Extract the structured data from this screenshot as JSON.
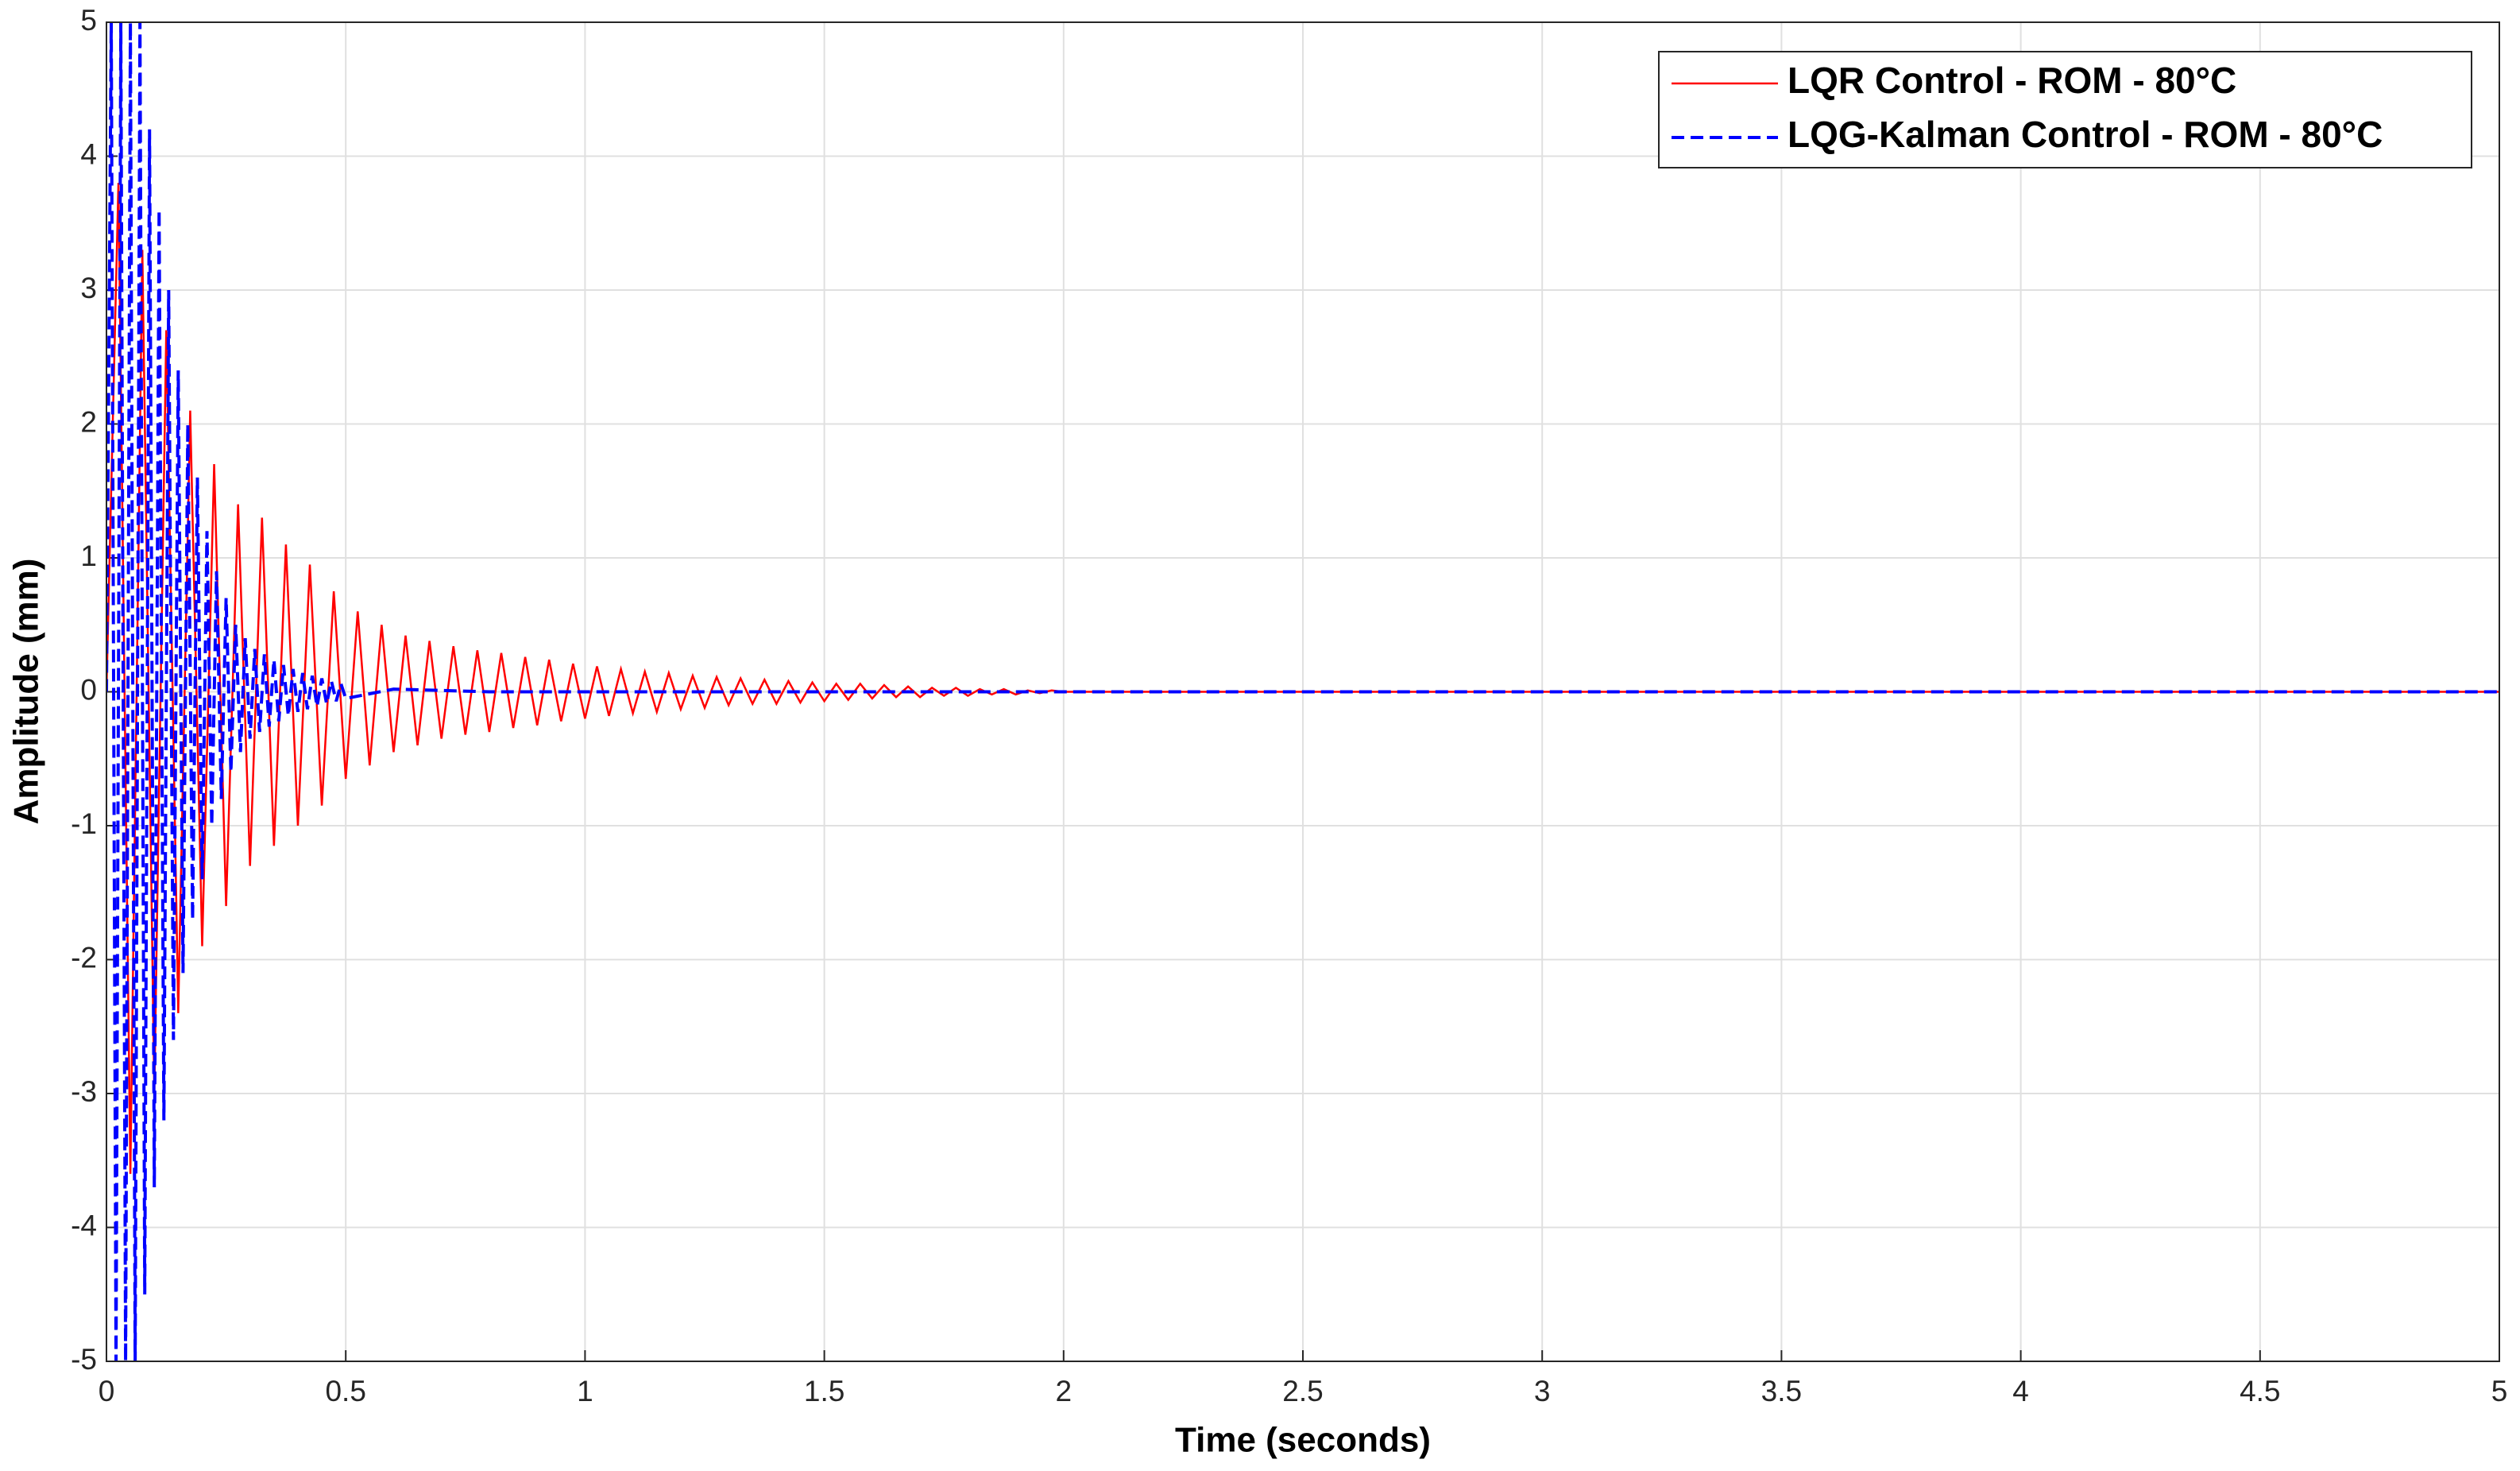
{
  "chart_data": {
    "type": "line",
    "x_label": "Time (seconds)",
    "y_label": "Amplitude (mm)",
    "xlim": [
      0,
      5
    ],
    "ylim": [
      -5,
      5
    ],
    "xticks": [
      0,
      0.5,
      1,
      1.5,
      2,
      2.5,
      3,
      3.5,
      4,
      4.5,
      5
    ],
    "yticks": [
      -5,
      -4,
      -3,
      -2,
      -1,
      0,
      1,
      2,
      3,
      4,
      5
    ],
    "grid": true,
    "legend": "upper right",
    "series": [
      {
        "name": "LQR Control - ROM - 80°C",
        "color": "#ff0000",
        "style": "solid",
        "x": [
          0,
          0.025,
          0.05,
          0.075,
          0.1,
          0.125,
          0.15,
          0.175,
          0.2,
          0.225,
          0.25,
          0.275,
          0.3,
          0.325,
          0.35,
          0.375,
          0.4,
          0.425,
          0.45,
          0.475,
          0.5,
          0.525,
          0.55,
          0.575,
          0.6,
          0.625,
          0.65,
          0.675,
          0.7,
          0.725,
          0.75,
          0.775,
          0.8,
          0.825,
          0.85,
          0.875,
          0.9,
          0.925,
          0.95,
          0.975,
          1.0,
          1.025,
          1.05,
          1.075,
          1.1,
          1.125,
          1.15,
          1.175,
          1.2,
          1.225,
          1.25,
          1.275,
          1.3,
          1.325,
          1.35,
          1.375,
          1.4,
          1.425,
          1.45,
          1.475,
          1.5,
          1.525,
          1.55,
          1.575,
          1.6,
          1.625,
          1.65,
          1.675,
          1.7,
          1.725,
          1.75,
          1.775,
          1.8,
          1.825,
          1.85,
          1.875,
          1.9,
          1.925,
          1.95,
          1.975,
          2.0,
          5.0
        ],
        "values": [
          0,
          3.8,
          -3.6,
          3.3,
          -3.0,
          2.7,
          -2.4,
          2.1,
          -1.9,
          1.7,
          -1.6,
          1.4,
          -1.3,
          1.3,
          -1.15,
          1.1,
          -1.0,
          0.95,
          -0.85,
          0.75,
          -0.65,
          0.6,
          -0.55,
          0.5,
          -0.45,
          0.42,
          -0.4,
          0.38,
          -0.35,
          0.34,
          -0.32,
          0.31,
          -0.3,
          0.29,
          -0.27,
          0.26,
          -0.25,
          0.24,
          -0.22,
          0.21,
          -0.2,
          0.19,
          -0.18,
          0.17,
          -0.16,
          0.15,
          -0.15,
          0.14,
          -0.13,
          0.12,
          -0.12,
          0.11,
          -0.1,
          0.1,
          -0.09,
          0.09,
          -0.09,
          0.08,
          -0.08,
          0.07,
          -0.07,
          0.06,
          -0.06,
          0.06,
          -0.05,
          0.05,
          -0.04,
          0.04,
          -0.04,
          0.03,
          -0.03,
          0.03,
          -0.03,
          0.02,
          -0.02,
          0.02,
          -0.02,
          0.01,
          -0.01,
          0.01,
          0,
          0
        ]
      },
      {
        "name": "LQG-Kalman Control - ROM - 80°C",
        "color": "#0000ff",
        "style": "dashed",
        "x": [
          0,
          0.01,
          0.02,
          0.03,
          0.04,
          0.05,
          0.06,
          0.07,
          0.08,
          0.09,
          0.1,
          0.11,
          0.12,
          0.13,
          0.14,
          0.15,
          0.16,
          0.17,
          0.18,
          0.19,
          0.2,
          0.21,
          0.22,
          0.23,
          0.24,
          0.25,
          0.26,
          0.27,
          0.28,
          0.29,
          0.3,
          0.31,
          0.32,
          0.33,
          0.34,
          0.35,
          0.36,
          0.37,
          0.38,
          0.39,
          0.4,
          0.41,
          0.42,
          0.43,
          0.44,
          0.45,
          0.46,
          0.47,
          0.48,
          0.49,
          0.5,
          0.6,
          0.8,
          5.0
        ],
        "values": [
          0,
          5,
          -5,
          5,
          -5,
          5,
          -5,
          5,
          -4.5,
          4.2,
          -3.7,
          3.6,
          -3.2,
          3.0,
          -2.6,
          2.4,
          -2.1,
          2.0,
          -1.7,
          1.6,
          -1.4,
          1.2,
          -1.0,
          0.9,
          -0.8,
          0.7,
          -0.6,
          0.5,
          -0.45,
          0.4,
          -0.35,
          0.32,
          -0.3,
          0.28,
          -0.26,
          0.24,
          -0.22,
          0.2,
          -0.18,
          0.17,
          -0.15,
          0.14,
          -0.13,
          0.12,
          -0.11,
          0.1,
          -0.09,
          0.08,
          -0.07,
          0.06,
          -0.05,
          0.02,
          0,
          0
        ]
      }
    ]
  }
}
